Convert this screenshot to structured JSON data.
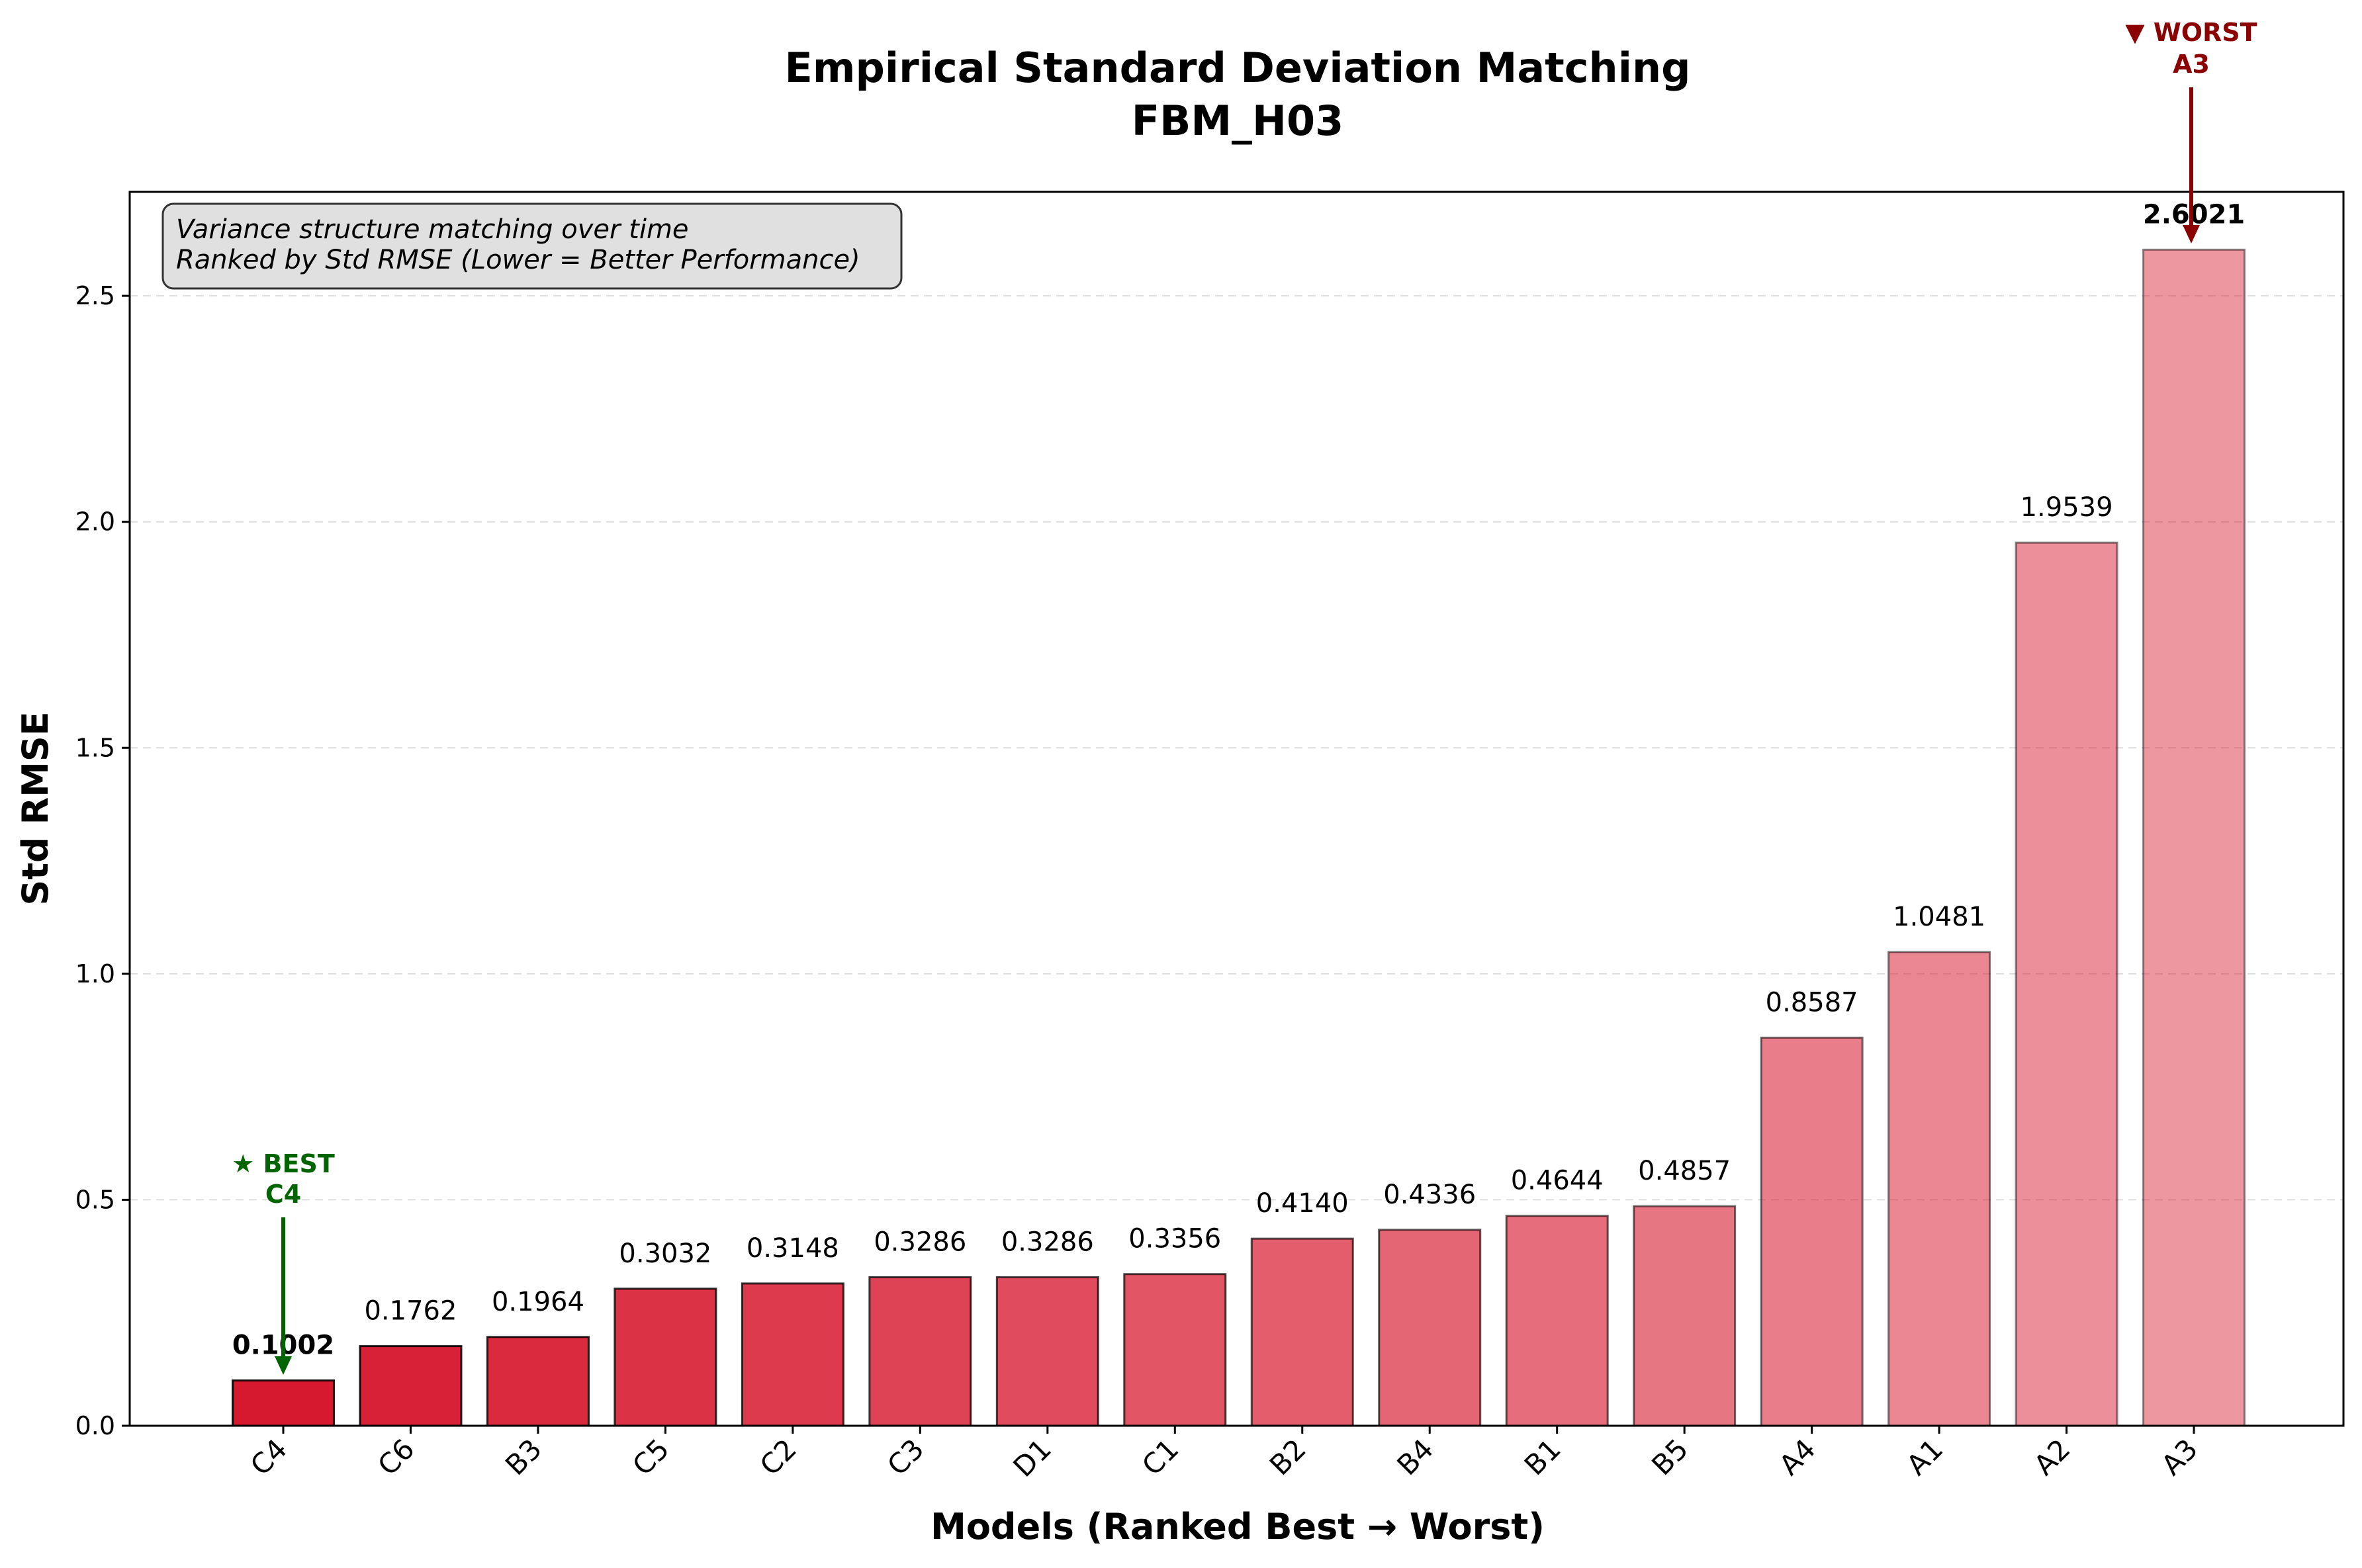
{
  "chart_data": {
    "type": "bar",
    "title": "Empirical Standard Deviation Matching",
    "subtitle": "FBM_H03",
    "xlabel": "Models (Ranked Best → Worst)",
    "ylabel": "Std RMSE",
    "ylim": [
      0,
      2.73
    ],
    "yticks": [
      "0.0",
      "0.5",
      "1.0",
      "1.5",
      "2.0",
      "2.5"
    ],
    "grid": "horizontal dashed",
    "categories": [
      "C4",
      "C6",
      "B3",
      "C5",
      "C2",
      "C3",
      "D1",
      "C1",
      "B2",
      "B4",
      "B1",
      "B5",
      "A4",
      "A1",
      "A2",
      "A3"
    ],
    "values": [
      0.1002,
      0.1762,
      0.1964,
      0.3032,
      0.3148,
      0.3286,
      0.3286,
      0.3356,
      0.414,
      0.4336,
      0.4644,
      0.4857,
      0.8587,
      1.0481,
      1.9539,
      2.6021
    ],
    "value_labels": [
      "0.1002",
      "0.1762",
      "0.1964",
      "0.3032",
      "0.3148",
      "0.3286",
      "0.3286",
      "0.3356",
      "0.4140",
      "0.4336",
      "0.4644",
      "0.4857",
      "0.8587",
      "1.0481",
      "1.9539",
      "2.6021"
    ],
    "annotation_box": {
      "line1": "Variance structure matching over time",
      "line2": "Ranked by Std RMSE (Lower = Better Performance)"
    },
    "best_callout": {
      "line1": "★ BEST",
      "line2": "C4",
      "color": "#006400"
    },
    "worst_callout": {
      "line1": "▼ WORST",
      "line2": "A3",
      "color": "#8b0000"
    },
    "bar_color": "#d7192f",
    "bar_edge_dark": "#000000"
  }
}
